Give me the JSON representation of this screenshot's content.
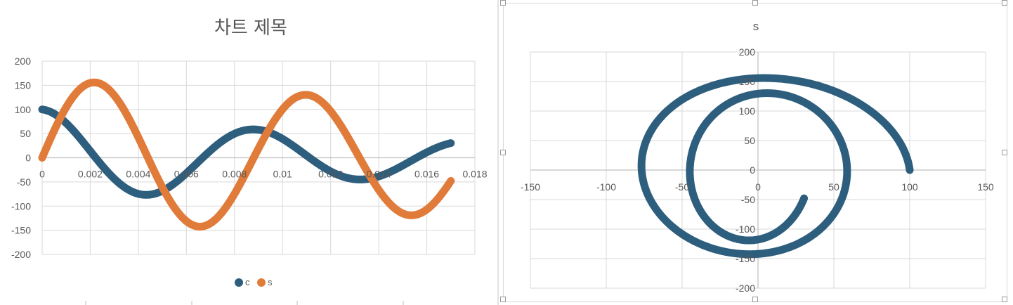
{
  "colors": {
    "c": "#2e5e7e",
    "s": "#e07b39",
    "grid": "#d9d9d9",
    "axis": "#bfbfbf",
    "text": "#595959"
  },
  "chart_data": [
    {
      "type": "line",
      "title": "차트 제목",
      "xlim": [
        0,
        0.018
      ],
      "ylim": [
        -200,
        200
      ],
      "x_ticks": [
        "0",
        "0.002",
        "0.004",
        "0.006",
        "0.008",
        "0.01",
        "0.012",
        "0.014",
        "0.016",
        "0.018"
      ],
      "y_ticks": [
        "200",
        "150",
        "100",
        "50",
        "0",
        "-50",
        "-100",
        "-150",
        "-200"
      ],
      "grid": true,
      "legend_position": "bottom",
      "x_range": [
        0,
        0.017
      ],
      "series": [
        {
          "name": "c",
          "formula": "100*exp(-60.2*t)*cos(2*pi*t/0.0089)",
          "color": "#2e5e7e"
        },
        {
          "name": "s",
          "formula": "163*exp(-20.4*t)*sin(2*pi*t/0.0088)",
          "color": "#e07b39"
        }
      ]
    },
    {
      "type": "scatter",
      "title": "s",
      "xlim": [
        -150,
        150
      ],
      "ylim": [
        -200,
        200
      ],
      "x_ticks": [
        "-150",
        "-100",
        "-50",
        "0",
        "50",
        "100",
        "150"
      ],
      "y_ticks": [
        "200",
        "150",
        "100",
        "50",
        "0",
        "-50",
        "-100",
        "-150",
        "-200"
      ],
      "grid": true,
      "series": [
        {
          "name": "s",
          "x": "c",
          "y": "s",
          "color": "#2e5e7e"
        }
      ]
    }
  ],
  "legend": {
    "c_label": "c",
    "s_label": "s"
  }
}
